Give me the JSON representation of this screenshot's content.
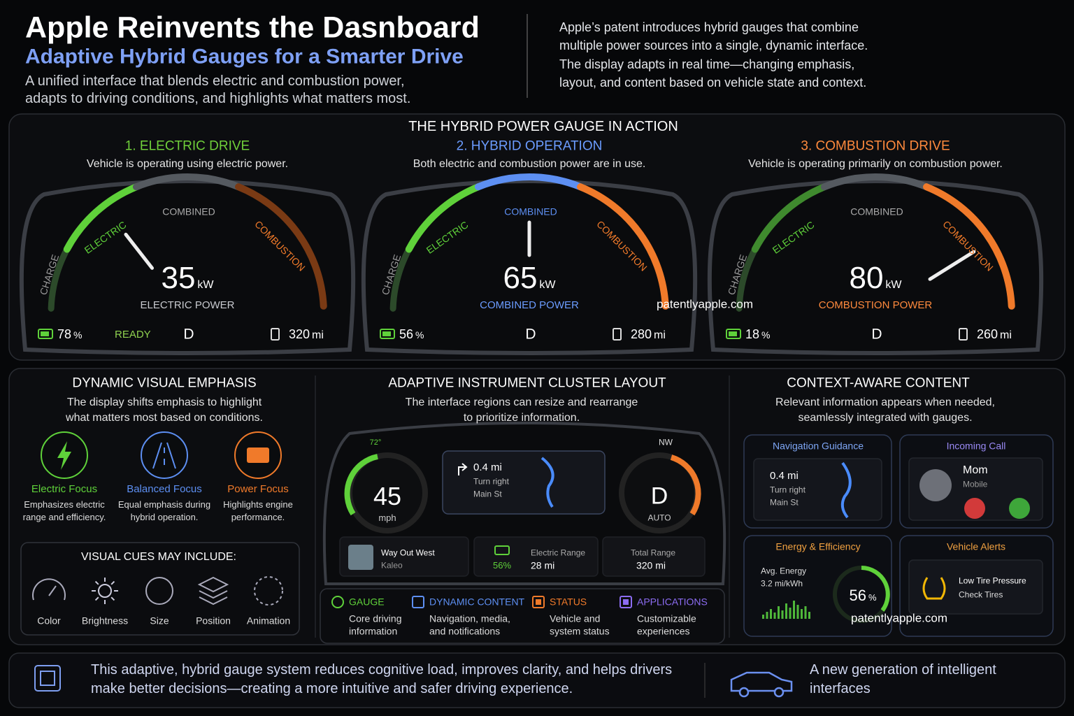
{
  "header": {
    "title": "Apple Reinvents the Dasnboard",
    "subtitle": "Adaptive Hybrid Gauges for a Smarter Drive",
    "tagline": [
      "A unified interface that blends electric and combustion power,",
      "adapts to driving conditions, and highlights what matters most."
    ],
    "intro": [
      "Apple’s patent introduces hybrid gauges that combine",
      "multiple power sources into a single, dynamic interface.",
      "The display adapts in real time—changing emphasis,",
      "layout, and content based on vehicle state and context."
    ]
  },
  "gauges": {
    "heading": "THE HYBRID POWER GAUGE IN ACTION",
    "panels": [
      {
        "title": "1. ELECTRIC DRIVE",
        "description": "Vehicle is operating using electric power.",
        "arc_labels": [
          "CHARGE",
          "ELECTRIC",
          "COMBINED",
          "COMBUSTION"
        ],
        "power": 35,
        "unit": "kW",
        "power_label": "ELECTRIC POWER",
        "battery": 78,
        "battery_unit": "%",
        "status": "READY",
        "gear": "D",
        "range": 320,
        "range_unit": "mi"
      },
      {
        "title": "2. HYBRID OPERATION",
        "description": "Both electric and combustion power are in use.",
        "arc_labels": [
          "CHARGE",
          "ELECTRIC",
          "COMBINED",
          "COMBUSTION"
        ],
        "power": 65,
        "unit": "kW",
        "power_label": "COMBINED POWER",
        "battery": 56,
        "battery_unit": "%",
        "gear": "D",
        "range": 280,
        "range_unit": "mi"
      },
      {
        "title": "3. COMBUSTION DRIVE",
        "description": "Vehicle is operating primarily on combustion power.",
        "arc_labels": [
          "CHARGE",
          "ELECTRIC",
          "COMBINED",
          "COMBUSTION"
        ],
        "power": 80,
        "unit": "kW",
        "power_label": "COMBUSTION POWER",
        "battery": 18,
        "battery_unit": "%",
        "gear": "D",
        "range": 260,
        "range_unit": "mi"
      }
    ]
  },
  "emphasis": {
    "heading": "DYNAMIC VISUAL EMPHASIS",
    "description": [
      "The display shifts emphasis to highlight",
      "what matters most based on conditions."
    ],
    "modes": [
      {
        "name": "Electric Focus",
        "description": [
          "Emphasizes electric",
          "range and efficiency."
        ]
      },
      {
        "name": "Balanced Focus",
        "description": [
          "Equal emphasis during",
          "hybrid operation."
        ]
      },
      {
        "name": "Power Focus",
        "description": [
          "Highlights engine",
          "performance."
        ]
      }
    ],
    "cues": {
      "heading": "VISUAL CUES MAY INCLUDE:",
      "items": [
        "Color",
        "Brightness",
        "Size",
        "Position",
        "Animation"
      ]
    }
  },
  "layout": {
    "heading": "ADAPTIVE INSTRUMENT CLUSTER LAYOUT",
    "description": [
      "The interface regions can resize and rearrange",
      "to prioritize information."
    ],
    "cluster": {
      "temperature": "72°",
      "speed": 45,
      "speed_unit": "mph",
      "nav_distance": "0.4 mi",
      "nav_turn": "Turn right",
      "nav_street": "Main St",
      "compass": "NW",
      "gear": "D",
      "gear_mode": "AUTO",
      "song": "Way Out West",
      "artist": "Kaleo",
      "battery": "56%",
      "range_label": "Electric Range",
      "range": "28 mi",
      "total_label": "Total Range",
      "total": "320 mi"
    },
    "legend": [
      {
        "name": "GAUGE",
        "description": [
          "Core driving",
          "information"
        ]
      },
      {
        "name": "DYNAMIC CONTENT",
        "description": [
          "Navigation, media,",
          "and notifications"
        ]
      },
      {
        "name": "STATUS",
        "description": [
          "Vehicle and",
          "system status"
        ]
      },
      {
        "name": "APPLICATIONS",
        "description": [
          "Customizable",
          "experiences"
        ]
      }
    ]
  },
  "context": {
    "heading": "CONTEXT-AWARE CONTENT",
    "description": [
      "Relevant information appears when needed,",
      "seamlessly integrated with gauges."
    ],
    "navigation": {
      "title": "Navigation Guidance",
      "distance": "0.4 mi",
      "turn": "Turn right",
      "street": "Main St"
    },
    "call": {
      "title": "Incoming Call",
      "caller": "Mom",
      "label": "Mobile"
    },
    "energy": {
      "title": "Energy & Efficiency",
      "label": "Avg. Energy",
      "value": "3.2 mi/kWh",
      "percent": 56,
      "percent_unit": "%"
    },
    "alerts": {
      "title": "Vehicle Alerts",
      "alert": "Low Tire Pressure",
      "action": "Check Tires"
    }
  },
  "footer": {
    "summary": [
      "This adaptive, hybrid gauge system reduces cognitive load, improves clarity, and helps drivers",
      "make better decisions—creating a more intuitive and safer driving experience."
    ],
    "tagline": [
      "A new generation of intelligent",
      "interfaces"
    ]
  },
  "watermarks": [
    "patentlyapple.com",
    "patentlyapple.com"
  ]
}
